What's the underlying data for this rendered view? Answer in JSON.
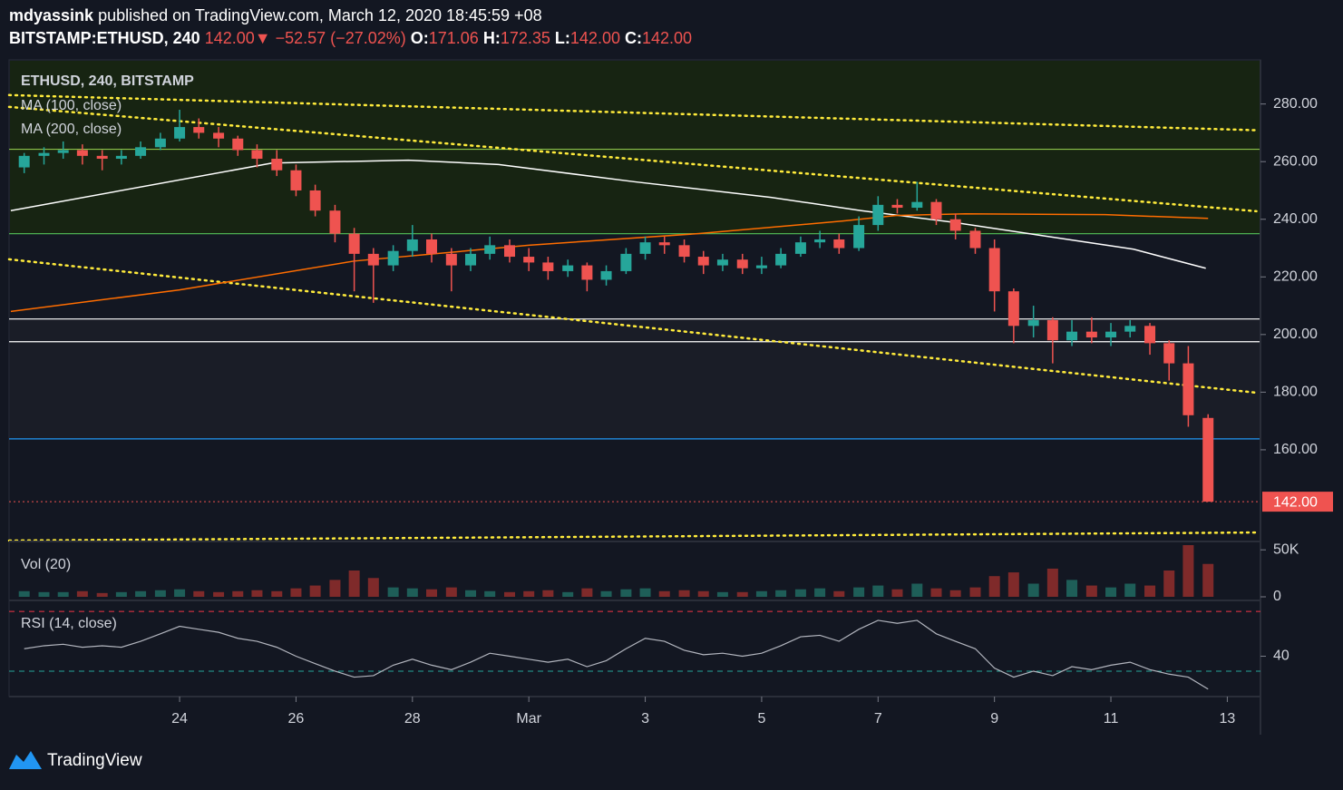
{
  "header": {
    "author": "mdyassink",
    "published": "published on TradingView.com, March 12, 2020 18:45:59 +08",
    "symbol": "BITSTAMP:ETHUSD, 240",
    "price": "142.00",
    "change": "−52.57 (−27.02%)",
    "ohlc": [
      {
        "label": "O:",
        "value": "171.06"
      },
      {
        "label": "H:",
        "value": "172.35"
      },
      {
        "label": "L:",
        "value": "142.00"
      },
      {
        "label": "C:",
        "value": "142.00"
      }
    ]
  },
  "chart_data": {
    "type": "candlestick",
    "legend": "ETHUSD, 240, BITSTAMP",
    "x": [
      -0.67,
      -0.33,
      0,
      0.33,
      0.67,
      1,
      1.33,
      1.67,
      2,
      2.33,
      2.67,
      3,
      3.33,
      3.67,
      4,
      4.33,
      4.67,
      5,
      5.33,
      5.67,
      6,
      6.33,
      6.67,
      7,
      7.33,
      7.67,
      8,
      8.33,
      8.67,
      9,
      9.33,
      9.67,
      10,
      10.33,
      10.67,
      11,
      11.33,
      11.67,
      12,
      12.33,
      12.67,
      13,
      13.33,
      13.67,
      14,
      14.33,
      14.67,
      15,
      15.33,
      15.67,
      16,
      16.33,
      16.67,
      17,
      17.33,
      17.67,
      18,
      18.33,
      18.67,
      19,
      19.33,
      19.67
    ],
    "candles": [
      [
        258,
        263,
        256,
        262
      ],
      [
        262,
        265,
        259,
        263
      ],
      [
        263,
        267,
        261,
        264
      ],
      [
        264,
        266,
        259,
        262
      ],
      [
        262,
        264,
        257,
        261
      ],
      [
        261,
        264,
        259,
        262
      ],
      [
        262,
        267,
        261,
        265
      ],
      [
        265,
        270,
        264,
        268
      ],
      [
        268,
        278,
        267,
        272
      ],
      [
        272,
        275,
        268,
        270
      ],
      [
        270,
        272,
        265,
        268
      ],
      [
        268,
        269,
        262,
        264
      ],
      [
        264,
        266,
        258,
        261
      ],
      [
        261,
        264,
        255,
        257
      ],
      [
        257,
        259,
        248,
        250
      ],
      [
        250,
        252,
        241,
        243
      ],
      [
        243,
        245,
        232,
        235
      ],
      [
        235,
        237,
        215,
        228
      ],
      [
        228,
        230,
        211,
        224
      ],
      [
        224,
        231,
        222,
        229
      ],
      [
        229,
        238,
        227,
        233
      ],
      [
        233,
        235,
        225,
        228
      ],
      [
        228,
        230,
        215,
        224
      ],
      [
        224,
        230,
        222,
        228
      ],
      [
        228,
        234,
        226,
        231
      ],
      [
        231,
        233,
        225,
        227
      ],
      [
        227,
        230,
        222,
        225
      ],
      [
        225,
        227,
        219,
        222
      ],
      [
        222,
        226,
        220,
        224
      ],
      [
        224,
        225,
        215,
        219
      ],
      [
        219,
        224,
        217,
        222
      ],
      [
        222,
        230,
        221,
        228
      ],
      [
        228,
        234,
        226,
        232
      ],
      [
        232,
        234,
        228,
        231
      ],
      [
        231,
        233,
        225,
        227
      ],
      [
        227,
        229,
        221,
        224
      ],
      [
        224,
        228,
        222,
        226
      ],
      [
        226,
        228,
        221,
        223
      ],
      [
        223,
        227,
        221,
        224
      ],
      [
        224,
        230,
        223,
        228
      ],
      [
        228,
        234,
        227,
        232
      ],
      [
        232,
        236,
        230,
        233
      ],
      [
        233,
        235,
        228,
        230
      ],
      [
        230,
        241,
        229,
        238
      ],
      [
        238,
        248,
        236,
        245
      ],
      [
        245,
        247,
        242,
        244
      ],
      [
        244,
        253,
        243,
        246
      ],
      [
        246,
        247,
        238,
        240
      ],
      [
        240,
        242,
        233,
        236
      ],
      [
        236,
        237,
        228,
        230
      ],
      [
        230,
        233,
        208,
        215
      ],
      [
        215,
        216,
        197,
        203
      ],
      [
        203,
        210,
        199,
        205
      ],
      [
        205,
        206,
        190,
        198
      ],
      [
        198,
        205,
        196,
        201
      ],
      [
        201,
        206,
        197,
        199
      ],
      [
        199,
        204,
        196,
        201
      ],
      [
        201,
        205,
        199,
        203
      ],
      [
        203,
        204,
        193,
        197
      ],
      [
        197,
        198,
        184,
        190
      ],
      [
        190,
        196,
        168,
        172
      ],
      [
        171.06,
        172.35,
        142,
        142
      ]
    ],
    "up_color": "#26a69a",
    "down_color": "#ef5350",
    "xlim": [
      -0.93,
      20.57
    ],
    "xticks": [
      {
        "value": 2,
        "label": "24"
      },
      {
        "value": 4,
        "label": "26"
      },
      {
        "value": 6,
        "label": "28"
      },
      {
        "value": 8,
        "label": "Mar"
      },
      {
        "value": 10,
        "label": "3"
      },
      {
        "value": 12,
        "label": "5"
      },
      {
        "value": 14,
        "label": "7"
      },
      {
        "value": 16,
        "label": "9"
      },
      {
        "value": 18,
        "label": "11"
      },
      {
        "value": 20,
        "label": "13"
      }
    ],
    "ylim": [
      128.5,
      295
    ],
    "yticks": [
      {
        "value": 160,
        "label": "160.00"
      },
      {
        "value": 180,
        "label": "180.00"
      },
      {
        "value": 200,
        "label": "200.00"
      },
      {
        "value": 220,
        "label": "220.00"
      },
      {
        "value": 240,
        "label": "240.00"
      },
      {
        "value": 260,
        "label": "260.00"
      },
      {
        "value": 280,
        "label": "280.00"
      }
    ],
    "levels": [
      {
        "value": 264.3,
        "color": "#8bc34a"
      },
      {
        "value": 235,
        "color": "#4caf50"
      },
      {
        "value": 205.4,
        "color": "#ffffff"
      },
      {
        "value": 197.5,
        "color": "#ffffff"
      },
      {
        "value": 163.8,
        "color": "#2196f3"
      }
    ],
    "trendlines": [
      {
        "x": [
          -0.93,
          20.5
        ],
        "y": [
          283.1,
          270.9
        ]
      },
      {
        "x": [
          -0.93,
          20.5
        ],
        "y": [
          279,
          242.8
        ]
      },
      {
        "x": [
          -0.93,
          20.5
        ],
        "y": [
          226.1,
          179.8
        ]
      },
      {
        "x": [
          -0.93,
          20.5
        ],
        "y": [
          128.5,
          131.3
        ]
      }
    ],
    "series": [
      {
        "name": "MA (100, close)",
        "color": "#ffffff",
        "x": [
          -0.9,
          3.59,
          5.93,
          7.48,
          9.82,
          12.16,
          13.71,
          15.27,
          16.83,
          18.39,
          19.63
        ],
        "values": [
          243,
          259.5,
          260.5,
          259,
          253,
          247.6,
          243,
          239,
          234.3,
          229.6,
          223
        ]
      },
      {
        "name": "MA (200, close)",
        "color": "#ff6d00",
        "x": [
          -0.9,
          2,
          5,
          8,
          10.9,
          13.4,
          14.3,
          15.5,
          17.9,
          19.67
        ],
        "values": [
          208,
          215.5,
          225.5,
          231,
          235,
          239.4,
          241.3,
          241.9,
          241.6,
          240.3
        ]
      }
    ],
    "last_price": {
      "value": 142,
      "label": "142.00"
    },
    "volume": {
      "name": "Vol (20)",
      "values": [
        6000,
        5000,
        5000,
        6000,
        4000,
        5000,
        6000,
        7000,
        8000,
        6000,
        5000,
        6000,
        7000,
        6000,
        9000,
        12000,
        18000,
        28000,
        20000,
        10000,
        9000,
        8000,
        10000,
        7000,
        6000,
        5000,
        6000,
        7000,
        5000,
        9000,
        6000,
        8000,
        9000,
        6000,
        7000,
        6000,
        5000,
        5000,
        6000,
        7000,
        8000,
        9000,
        6000,
        10000,
        12000,
        8000,
        14000,
        9000,
        7000,
        10000,
        22000,
        26000,
        14000,
        30000,
        18000,
        12000,
        10000,
        14000,
        12000,
        28000,
        55000,
        35000
      ],
      "up_color": "#1e5e58",
      "down_color": "#7f2a2a",
      "ylim": [
        0,
        56000
      ],
      "yticks": [
        {
          "value": 50000,
          "label": "50K"
        },
        0
      ]
    },
    "rsi": {
      "name": "RSI (14, close)",
      "color": "#b2b5be",
      "values": [
        45,
        47,
        48,
        46,
        47,
        46,
        50,
        55,
        60,
        58,
        56,
        52,
        50,
        46,
        40,
        35,
        30,
        26,
        27,
        34,
        38,
        34,
        31,
        36,
        42,
        40,
        38,
        36,
        38,
        33,
        37,
        45,
        52,
        50,
        44,
        41,
        42,
        40,
        42,
        47,
        53,
        54,
        50,
        58,
        64,
        62,
        64,
        55,
        50,
        45,
        32,
        26,
        30,
        27,
        33,
        31,
        34,
        36,
        31,
        28,
        26,
        18
      ],
      "ylim": [
        13,
        75.5
      ],
      "yticks": [
        40
      ],
      "bands": [
        {
          "value": 70,
          "color": "#f23645"
        },
        {
          "value": 30,
          "color": "#26a69a"
        }
      ]
    }
  },
  "footer": {
    "brand": "TradingView"
  }
}
